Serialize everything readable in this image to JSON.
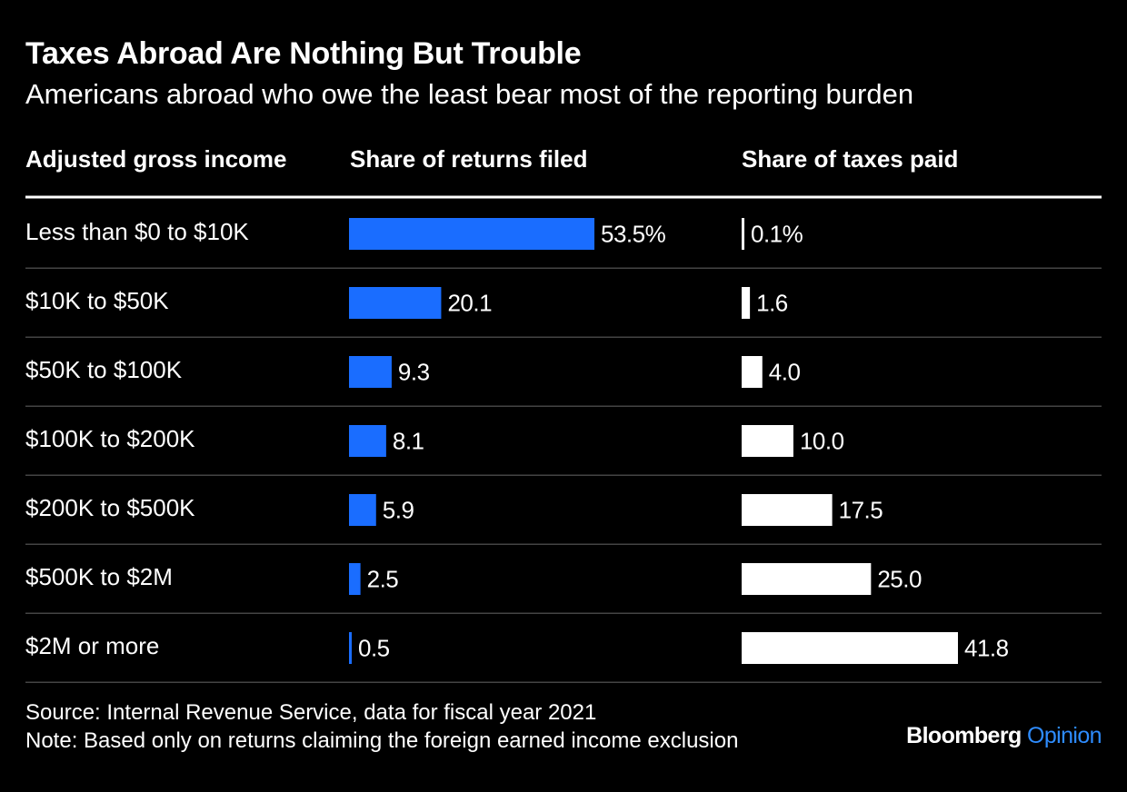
{
  "title": "Taxes Abroad Are Nothing But Trouble",
  "subtitle": "Americans abroad who owe the least bear most of the reporting burden",
  "columns": {
    "income": "Adjusted gross income",
    "returns": "Share of returns filed",
    "taxes": "Share of taxes paid"
  },
  "footer": {
    "source": "Source: Internal Revenue Service, data for fiscal year 2021",
    "note": "Note: Based only on returns claiming the foreign earned income exclusion"
  },
  "brand": {
    "name": "Bloomberg",
    "section": "Opinion"
  },
  "colors": {
    "background": "#000000",
    "returns_bar": "#1a6dff",
    "taxes_bar": "#ffffff",
    "divider": "#444444",
    "brand_accent": "#2e8cff"
  },
  "chart_data": {
    "type": "bar",
    "categories": [
      "Less than $0 to $10K",
      "$10K to $50K",
      "$50K to $100K",
      "$100K to $200K",
      "$200K to $500K",
      "$500K to $2M",
      "$2M or more"
    ],
    "series": [
      {
        "name": "Share of returns filed",
        "values": [
          53.5,
          20.1,
          9.3,
          8.1,
          5.9,
          2.5,
          0.5
        ],
        "labels": [
          "53.5%",
          "20.1",
          "9.3",
          "8.1",
          "5.9",
          "2.5",
          "0.5"
        ]
      },
      {
        "name": "Share of taxes paid",
        "values": [
          0.1,
          1.6,
          4.0,
          10.0,
          17.5,
          25.0,
          41.8
        ],
        "labels": [
          "0.1%",
          "1.6",
          "4.0",
          "10.0",
          "17.5",
          "25.0",
          "41.8"
        ]
      }
    ],
    "unit": "%",
    "orientation": "horizontal",
    "grid": false,
    "legend": "none"
  }
}
